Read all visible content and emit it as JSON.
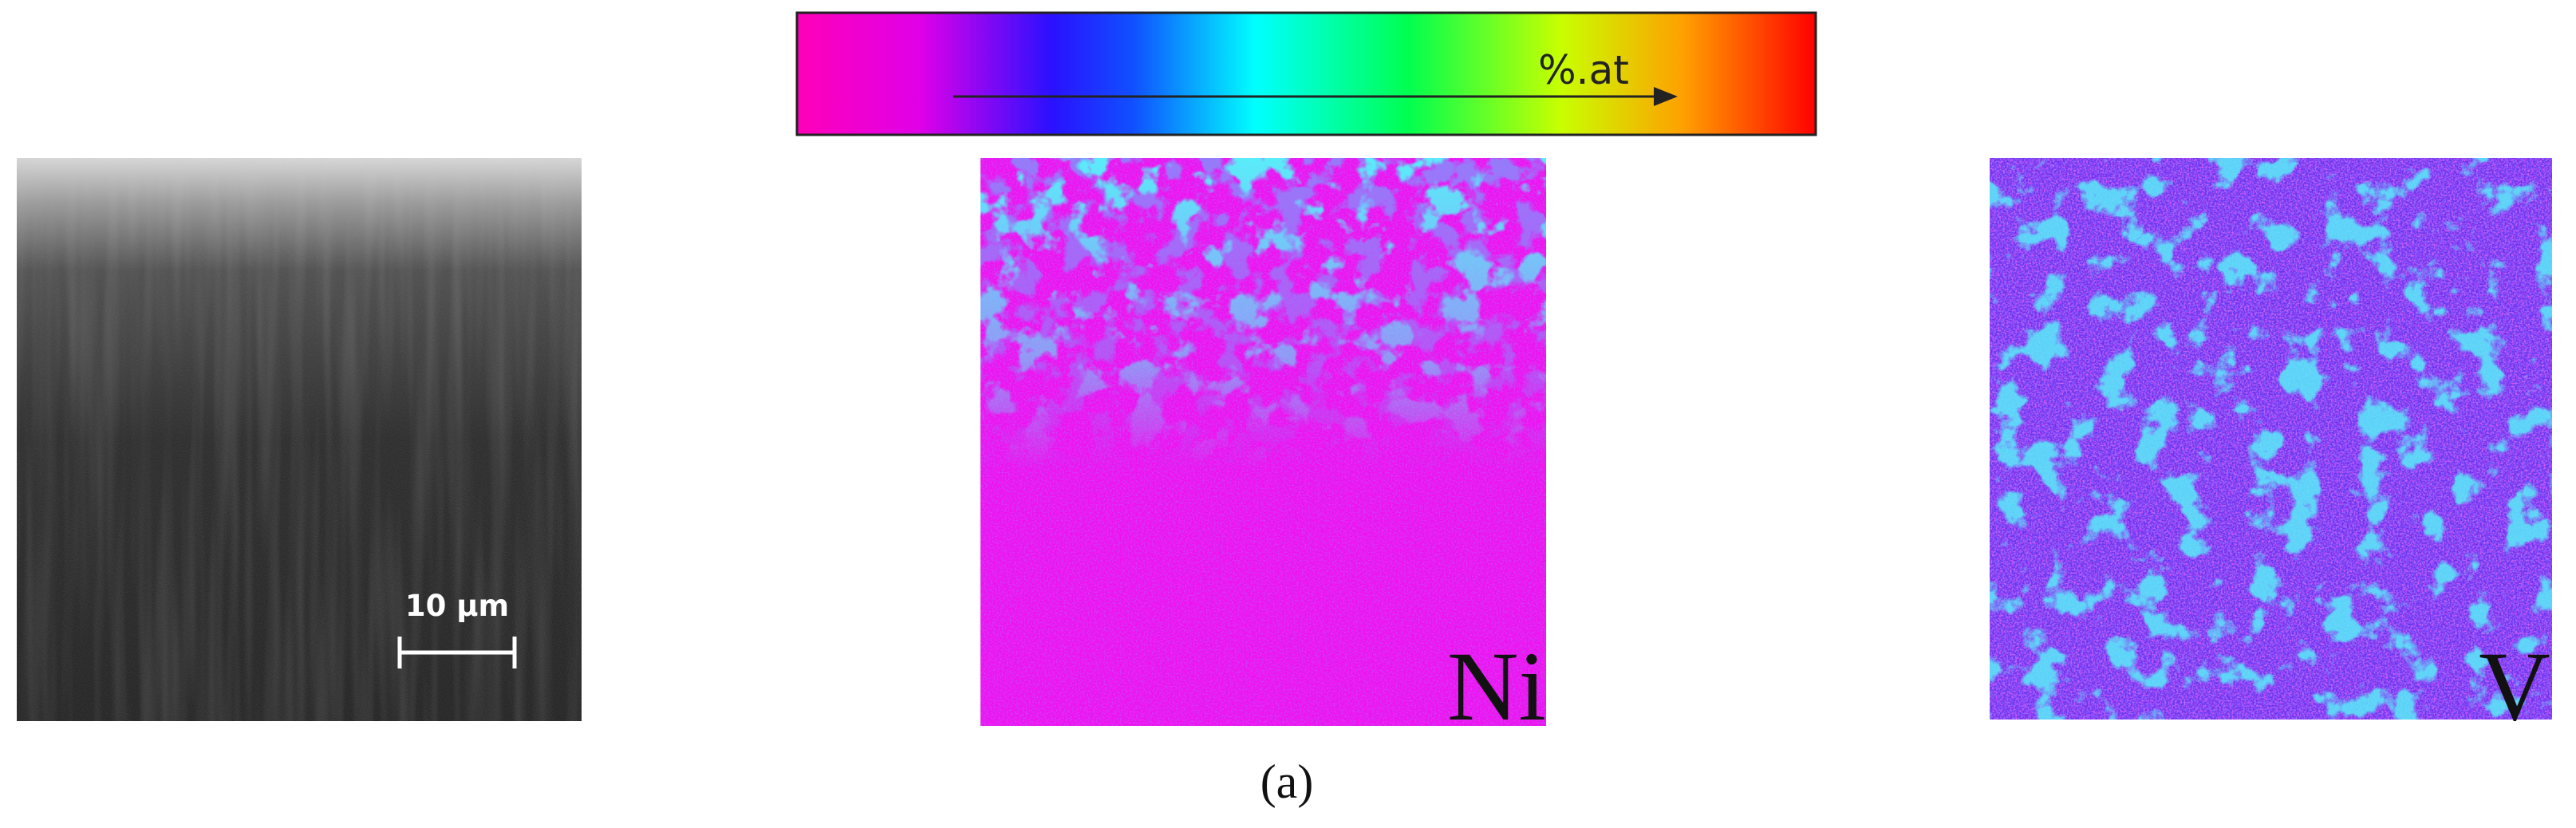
{
  "colorbar": {
    "label": "%.at"
  },
  "panels": [
    {
      "scale_bar": "10 µm"
    },
    {
      "label": "Ni"
    },
    {
      "label": "V"
    }
  ],
  "caption": "(a)"
}
